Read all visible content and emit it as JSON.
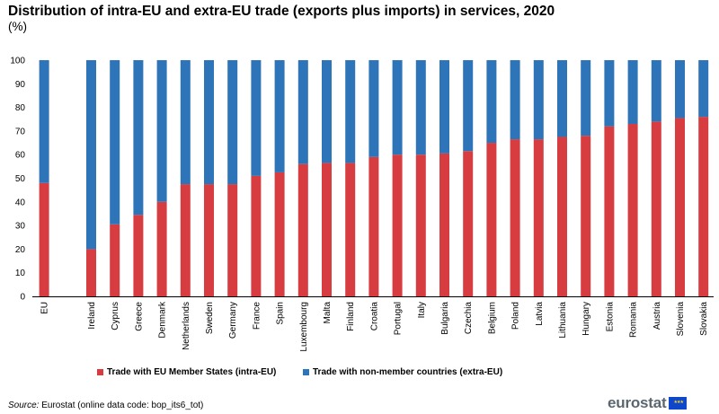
{
  "title": "Distribution of intra-EU and extra-EU trade (exports plus imports) in services, 2020",
  "subtitle": "(%)",
  "colors": {
    "intra": "#d73c41",
    "extra": "#2e74b8",
    "axis": "#000000"
  },
  "legend": {
    "intra": "Trade with EU Member States (intra-EU)",
    "extra": "Trade with non-member countries (extra-EU)"
  },
  "source": {
    "label": "Source:",
    "text": " Eurostat (online data code: bop_its6_tot)"
  },
  "logo": {
    "text": "eurostat",
    "flag_icon": "eu-flag-icon",
    "stars": "★★★"
  },
  "chart_data": {
    "type": "bar",
    "stacked": true,
    "title": "Distribution of intra-EU and extra-EU trade (exports plus imports) in services, 2020",
    "ylabel": "(%)",
    "ylim": [
      0,
      100
    ],
    "yticks": [
      0,
      10,
      20,
      30,
      40,
      50,
      60,
      70,
      80,
      90,
      100
    ],
    "categories": [
      "EU",
      "Ireland",
      "Cyprus",
      "Greece",
      "Denmark",
      "Netherlands",
      "Sweden",
      "Germany",
      "France",
      "Spain",
      "Luxembourg",
      "Malta",
      "Finland",
      "Croatia",
      "Portugal",
      "Italy",
      "Bulgaria",
      "Czechia",
      "Belgium",
      "Poland",
      "Latvia",
      "Lithuania",
      "Hungary",
      "Estonia",
      "Romania",
      "Austria",
      "Slovenia",
      "Slovakia"
    ],
    "series": [
      {
        "name": "Trade with EU Member States (intra-EU)",
        "values": [
          48,
          20,
          30.5,
          34.5,
          40,
          47.5,
          47.5,
          47.5,
          51,
          52.5,
          56,
          56.5,
          56.5,
          59,
          60,
          60,
          60.5,
          61.5,
          65,
          66.5,
          66.5,
          67.5,
          68,
          72,
          73,
          74,
          75.5,
          76
        ]
      },
      {
        "name": "Trade with non-member countries (extra-EU)",
        "values": [
          52,
          80,
          69.5,
          65.5,
          60,
          52.5,
          52.5,
          52.5,
          49,
          47.5,
          44,
          43.5,
          43.5,
          41,
          40,
          40,
          39.5,
          38.5,
          35,
          33.5,
          33.5,
          32.5,
          32,
          28,
          27,
          26,
          24.5,
          24
        ]
      }
    ]
  }
}
